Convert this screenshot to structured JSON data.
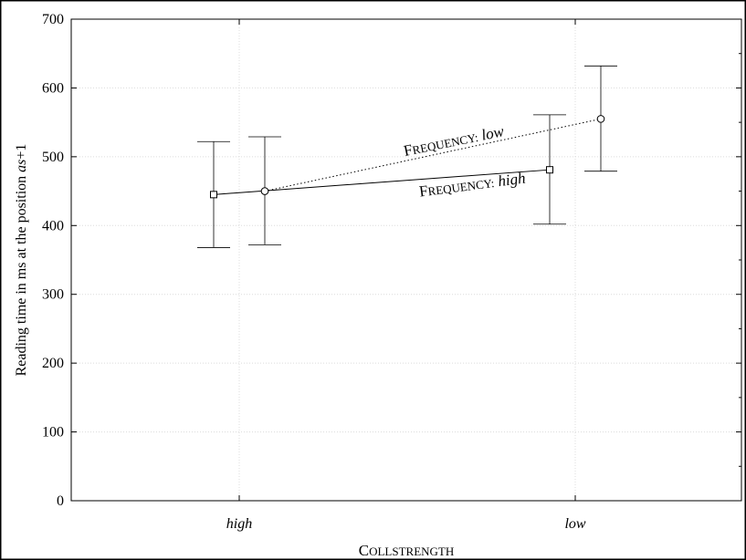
{
  "chart_data": {
    "type": "line",
    "categories": [
      "high",
      "low"
    ],
    "xlabel": "CollStrength",
    "ylabel": "Reading time in ms at the position as+1",
    "ylim": [
      0,
      700
    ],
    "yticks": [
      0,
      100,
      200,
      300,
      400,
      500,
      600,
      700
    ],
    "grid": true,
    "line_styles": {
      "frequency_high": "solid",
      "frequency_low": "dotted"
    },
    "marker_styles": {
      "frequency_high": "square",
      "frequency_low": "circle"
    },
    "series": [
      {
        "name": "Frequency: high",
        "label_prefix": "Frequency: ",
        "label_level": "high",
        "values": [
          445,
          481
        ],
        "error_low": [
          368,
          402
        ],
        "error_high": [
          522,
          561
        ]
      },
      {
        "name": "Frequency: low",
        "label_prefix": "Frequency: ",
        "label_level": "low",
        "values": [
          450,
          555
        ],
        "error_low": [
          372,
          479
        ],
        "error_high": [
          529,
          632
        ]
      }
    ]
  }
}
